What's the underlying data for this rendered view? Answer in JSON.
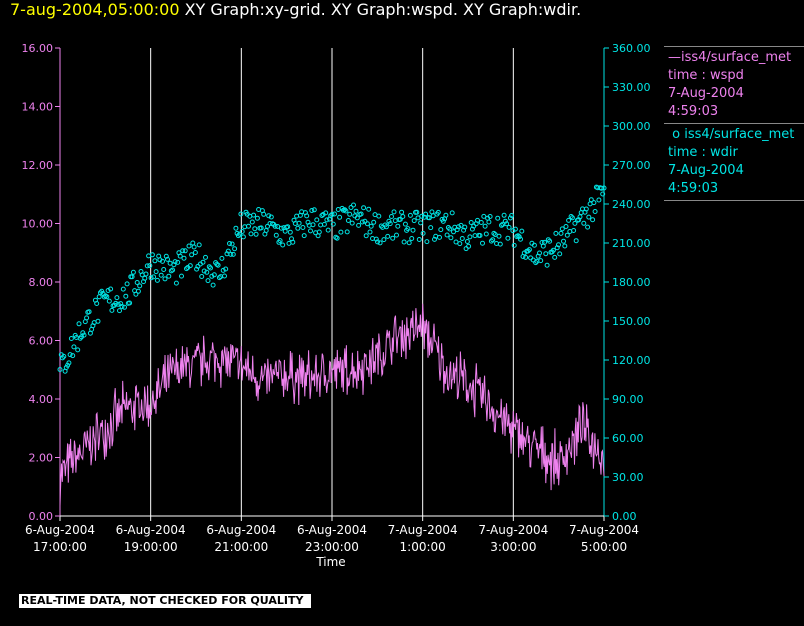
{
  "header": {
    "date": "7-aug-2004,05:00:00",
    "titles": "XY Graph:xy-grid.  XY Graph:wspd.  XY Graph:wdir."
  },
  "legend": [
    {
      "line1": "iss4/surface_met",
      "line2": "time : wspd",
      "line3": "7-Aug-2004",
      "line4": "4:59:03",
      "marker": "line-icon"
    },
    {
      "line1": "iss4/surface_met",
      "line2": "time : wdir",
      "line3": "7-Aug-2004",
      "line4": "4:59:03",
      "marker": "circle-icon"
    }
  ],
  "footer": {
    "label": "REAL-TIME DATA, NOT CHECKED FOR QUALITY"
  },
  "colors": {
    "wspd": "#ee82ee",
    "wdir": "#00e5e5",
    "grid": "#ffffff",
    "date": "#ffff00"
  },
  "chart_data": {
    "type": "line",
    "xlabel": "Time",
    "x_range": [
      "2004-08-06 17:00",
      "2004-08-07 05:00"
    ],
    "x_ticks": [
      {
        "line1": "6-Aug-2004",
        "line2": "17:00:00"
      },
      {
        "line1": "6-Aug-2004",
        "line2": "19:00:00"
      },
      {
        "line1": "6-Aug-2004",
        "line2": "21:00:00"
      },
      {
        "line1": "6-Aug-2004",
        "line2": "23:00:00"
      },
      {
        "line1": "7-Aug-2004",
        "line2": "1:00:00"
      },
      {
        "line1": "7-Aug-2004",
        "line2": "3:00:00"
      },
      {
        "line1": "7-Aug-2004",
        "line2": "5:00:00"
      }
    ],
    "y_left": {
      "range": [
        0,
        16
      ],
      "ticks": [
        "0.00",
        "2.00",
        "4.00",
        "6.00",
        "8.00",
        "10.00",
        "12.00",
        "14.00",
        "16.00"
      ]
    },
    "y_right": {
      "range": [
        0,
        360
      ],
      "ticks": [
        "0.00",
        "30.00",
        "60.00",
        "90.00",
        "120.00",
        "150.00",
        "180.00",
        "210.00",
        "240.00",
        "270.00",
        "300.00",
        "330.00",
        "360.00"
      ]
    },
    "grid": "vertical",
    "series": [
      {
        "name": "iss4/surface_met time : wspd",
        "axis": "left",
        "style": "line",
        "times": [
          "17:00",
          "17:30",
          "18:00",
          "18:30",
          "19:00",
          "19:30",
          "20:00",
          "20:30",
          "21:00",
          "21:30",
          "22:00",
          "22:30",
          "23:00",
          "23:30",
          "00:00",
          "00:30",
          "01:00",
          "01:30",
          "02:00",
          "02:30",
          "03:00",
          "03:30",
          "04:00",
          "04:30",
          "05:00"
        ],
        "values": [
          1.4,
          2.2,
          3.0,
          3.7,
          3.8,
          4.9,
          5.2,
          5.4,
          5.1,
          4.6,
          4.8,
          4.7,
          4.9,
          5.0,
          5.4,
          6.2,
          6.5,
          5.0,
          4.5,
          3.8,
          2.9,
          2.3,
          1.8,
          3.0,
          2.0
        ],
        "noise": 0.8
      },
      {
        "name": "iss4/surface_met time : wdir",
        "axis": "right",
        "style": "circles",
        "times": [
          "17:00",
          "17:30",
          "18:00",
          "18:30",
          "19:00",
          "19:30",
          "20:00",
          "20:30",
          "21:00",
          "21:30",
          "22:00",
          "22:30",
          "23:00",
          "23:30",
          "00:00",
          "00:30",
          "01:00",
          "01:30",
          "02:00",
          "02:30",
          "03:00",
          "03:30",
          "04:00",
          "04:30",
          "05:00"
        ],
        "values": [
          112,
          145,
          165,
          170,
          195,
          188,
          200,
          185,
          222,
          225,
          215,
          228,
          222,
          230,
          222,
          222,
          222,
          225,
          215,
          222,
          220,
          200,
          208,
          228,
          248
        ],
        "noise": 12
      }
    ]
  }
}
